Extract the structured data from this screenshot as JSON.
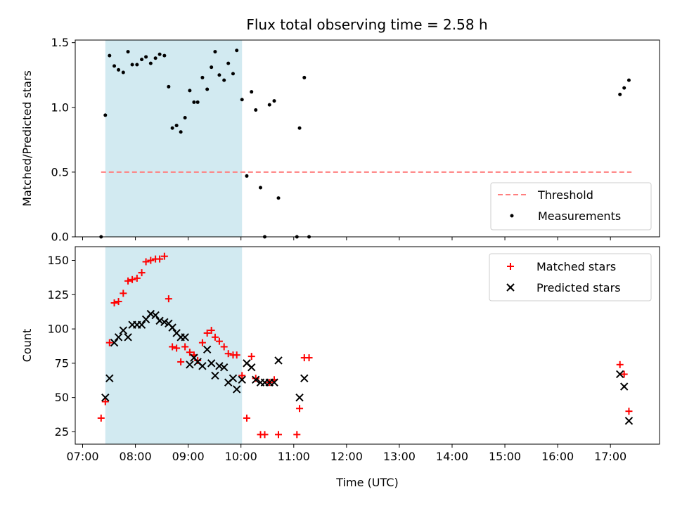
{
  "chart_data": {
    "title": "Flux total observing time = 2.58 h",
    "xlabel": "Time (UTC)",
    "x_ticks": [
      "07:00",
      "08:00",
      "09:00",
      "10:00",
      "11:00",
      "12:00",
      "13:00",
      "14:00",
      "15:00",
      "16:00",
      "17:00"
    ],
    "x_range_hours": [
      6.86,
      17.93
    ],
    "observing_window_hours": [
      7.43,
      10.02
    ],
    "colors": {
      "window": "#add8e6",
      "threshold": "#ff7f7f",
      "measurements": "#000000",
      "matched": "#ff0000",
      "predicted": "#000000"
    },
    "panels": [
      {
        "id": "ratio",
        "type": "scatter",
        "ylabel": "Matched/Predicted stars",
        "ylim": [
          0,
          1.52
        ],
        "y_ticks": [
          "0.0",
          "0.5",
          "1.0",
          "1.5"
        ],
        "y_tick_values": [
          0,
          0.5,
          1.0,
          1.5
        ],
        "legend": {
          "placement": "lower-right",
          "entries": [
            "Threshold",
            "Measurements"
          ]
        },
        "threshold": {
          "name": "Threshold",
          "y": 0.5,
          "x": [
            7.35,
            17.4
          ]
        },
        "measurements": {
          "name": "Measurements",
          "x": [
            7.35,
            7.43,
            7.51,
            7.6,
            7.68,
            7.77,
            7.86,
            7.94,
            8.03,
            8.12,
            8.2,
            8.29,
            8.38,
            8.46,
            8.55,
            8.63,
            8.7,
            8.78,
            8.86,
            8.94,
            9.03,
            9.11,
            9.18,
            9.27,
            9.36,
            9.44,
            9.51,
            9.59,
            9.68,
            9.76,
            9.85,
            9.92,
            10.02,
            10.11,
            10.2,
            10.28,
            10.37,
            10.45,
            10.54,
            10.63,
            10.71,
            11.06,
            11.11,
            11.2,
            11.29,
            17.18,
            17.26,
            17.35
          ],
          "y": [
            0.0,
            0.94,
            1.4,
            1.32,
            1.29,
            1.27,
            1.43,
            1.33,
            1.33,
            1.37,
            1.39,
            1.34,
            1.38,
            1.41,
            1.4,
            1.16,
            0.84,
            0.86,
            0.81,
            0.92,
            1.13,
            1.04,
            1.04,
            1.23,
            1.14,
            1.31,
            1.43,
            1.25,
            1.21,
            1.34,
            1.26,
            1.44,
            1.06,
            0.47,
            1.12,
            0.98,
            0.38,
            0.0,
            1.02,
            1.05,
            0.3,
            0.0,
            0.84,
            1.23,
            0.0,
            1.1,
            1.15,
            1.21
          ]
        }
      },
      {
        "id": "counts",
        "type": "scatter",
        "ylabel": "Count",
        "ylim": [
          16,
          160
        ],
        "y_ticks": [
          "25",
          "50",
          "75",
          "100",
          "125",
          "150"
        ],
        "y_tick_values": [
          25,
          50,
          75,
          100,
          125,
          150
        ],
        "legend": {
          "placement": "upper-right",
          "entries": [
            "Matched stars",
            "Predicted stars"
          ]
        },
        "series": [
          {
            "name": "Matched stars",
            "marker": "plus",
            "x": [
              7.35,
              7.43,
              7.51,
              7.6,
              7.68,
              7.77,
              7.86,
              7.94,
              8.03,
              8.12,
              8.2,
              8.29,
              8.38,
              8.46,
              8.55,
              8.63,
              8.7,
              8.78,
              8.86,
              8.94,
              9.03,
              9.11,
              9.18,
              9.27,
              9.36,
              9.44,
              9.51,
              9.59,
              9.68,
              9.76,
              9.85,
              9.92,
              10.02,
              10.11,
              10.2,
              10.28,
              10.37,
              10.45,
              10.54,
              10.63,
              10.71,
              11.06,
              11.11,
              11.2,
              11.29,
              17.18,
              17.26,
              17.35
            ],
            "y": [
              35,
              47,
              90,
              119,
              120,
              126,
              135,
              136,
              137,
              141,
              149,
              150,
              151,
              151,
              153,
              122,
              87,
              86,
              76,
              87,
              83,
              81,
              77,
              90,
              97,
              99,
              94,
              91,
              87,
              82,
              81,
              81,
              66,
              35,
              80,
              64,
              23,
              23,
              61,
              63,
              23,
              23,
              42,
              79,
              79,
              74,
              67,
              40
            ]
          },
          {
            "name": "Predicted stars",
            "marker": "x",
            "x": [
              7.43,
              7.51,
              7.6,
              7.68,
              7.77,
              7.86,
              7.94,
              8.03,
              8.12,
              8.2,
              8.29,
              8.38,
              8.46,
              8.55,
              8.63,
              8.7,
              8.78,
              8.86,
              8.94,
              9.03,
              9.11,
              9.18,
              9.27,
              9.36,
              9.44,
              9.51,
              9.59,
              9.68,
              9.76,
              9.85,
              9.92,
              10.02,
              10.11,
              10.2,
              10.28,
              10.37,
              10.45,
              10.54,
              10.63,
              10.71,
              11.11,
              11.2,
              17.18,
              17.26,
              17.35
            ],
            "y": [
              50,
              64,
              90,
              94,
              99,
              94,
              103,
              103,
              103,
              107,
              111,
              110,
              106,
              105,
              104,
              101,
              97,
              94,
              94,
              74,
              79,
              76,
              73,
              85,
              75,
              66,
              73,
              72,
              61,
              64,
              56,
              63,
              75,
              72,
              63,
              61,
              61,
              61,
              61,
              77,
              50,
              64,
              67,
              58,
              33
            ]
          }
        ]
      }
    ]
  }
}
